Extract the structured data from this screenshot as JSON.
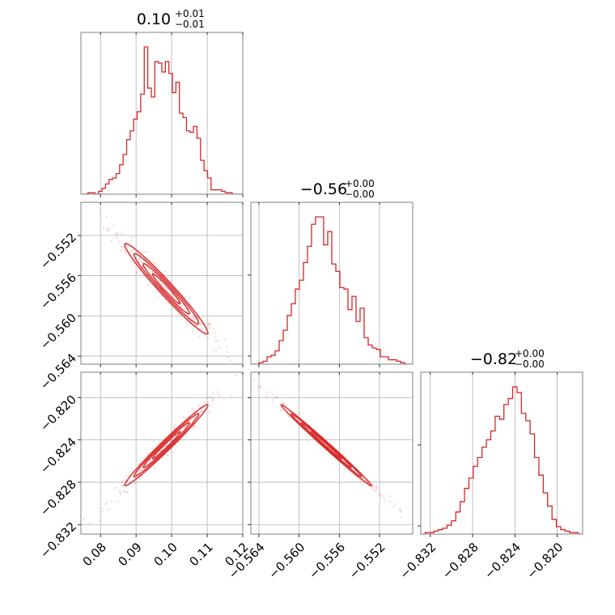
{
  "chart_data": {
    "type": "corner",
    "color": "#d62728",
    "grid": true,
    "parameters": [
      {
        "title": {
          "value": "0.10",
          "plus": "+0.01",
          "minus": "−0.01"
        },
        "range": [
          0.0745,
          0.12
        ],
        "ticks": [
          {
            "value": 0.08,
            "label": "0.08"
          },
          {
            "value": 0.09,
            "label": "0.09"
          },
          {
            "value": 0.1,
            "label": "0.10"
          },
          {
            "value": 0.11,
            "label": "0.11"
          },
          {
            "value": 0.12,
            "label": "0.12"
          }
        ],
        "histogram": [
          0,
          0,
          0.01,
          0.01,
          0,
          0.02,
          0.04,
          0.07,
          0.1,
          0.11,
          0.14,
          0.2,
          0.27,
          0.37,
          0.43,
          0.51,
          0.56,
          0.68,
          1.0,
          0.72,
          0.66,
          0.9,
          0.89,
          0.83,
          0.9,
          0.82,
          0.69,
          0.76,
          0.55,
          0.52,
          0.43,
          0.42,
          0.46,
          0.38,
          0.23,
          0.16,
          0.11,
          0.03,
          0.03,
          0.03,
          0.02,
          0.01,
          0.01,
          0,
          0,
          0
        ]
      },
      {
        "title": {
          "value": "−0.56",
          "plus": "+0.00",
          "minus": "−0.00"
        },
        "range": [
          -0.5648,
          -0.5487
        ],
        "ticks": [
          {
            "value": -0.564,
            "label": "−0.564"
          },
          {
            "value": -0.56,
            "label": "−0.560"
          },
          {
            "value": -0.556,
            "label": "−0.556"
          },
          {
            "value": -0.552,
            "label": "−0.552"
          }
        ],
        "histogram": [
          0,
          0,
          0.01,
          0.02,
          0.05,
          0.06,
          0.09,
          0.16,
          0.23,
          0.33,
          0.41,
          0.51,
          0.57,
          0.69,
          0.8,
          0.95,
          1.0,
          1.0,
          0.81,
          0.9,
          0.68,
          0.63,
          0.52,
          0.51,
          0.37,
          0.46,
          0.29,
          0.38,
          0.18,
          0.13,
          0.11,
          0.1,
          0.05,
          0.05,
          0.03,
          0.03,
          0.02,
          0.01,
          0,
          0
        ]
      },
      {
        "title": {
          "value": "−0.82",
          "plus": "+0.00",
          "minus": "−0.00"
        },
        "range": [
          -0.8329,
          -0.8176
        ],
        "ticks": [
          {
            "value": -0.832,
            "label": "−0.832"
          },
          {
            "value": -0.828,
            "label": "−0.828"
          },
          {
            "value": -0.824,
            "label": "−0.824"
          },
          {
            "value": -0.82,
            "label": "−0.820"
          }
        ],
        "histogram": [
          0,
          0.01,
          0.01,
          0.02,
          0.03,
          0.04,
          0.06,
          0.09,
          0.15,
          0.22,
          0.31,
          0.38,
          0.46,
          0.52,
          0.59,
          0.64,
          0.7,
          0.8,
          0.78,
          0.88,
          0.92,
          1.0,
          0.96,
          0.82,
          0.77,
          0.68,
          0.52,
          0.4,
          0.28,
          0.19,
          0.1,
          0.05,
          0.03,
          0.02,
          0.01,
          0.01,
          0
        ]
      }
    ]
  }
}
